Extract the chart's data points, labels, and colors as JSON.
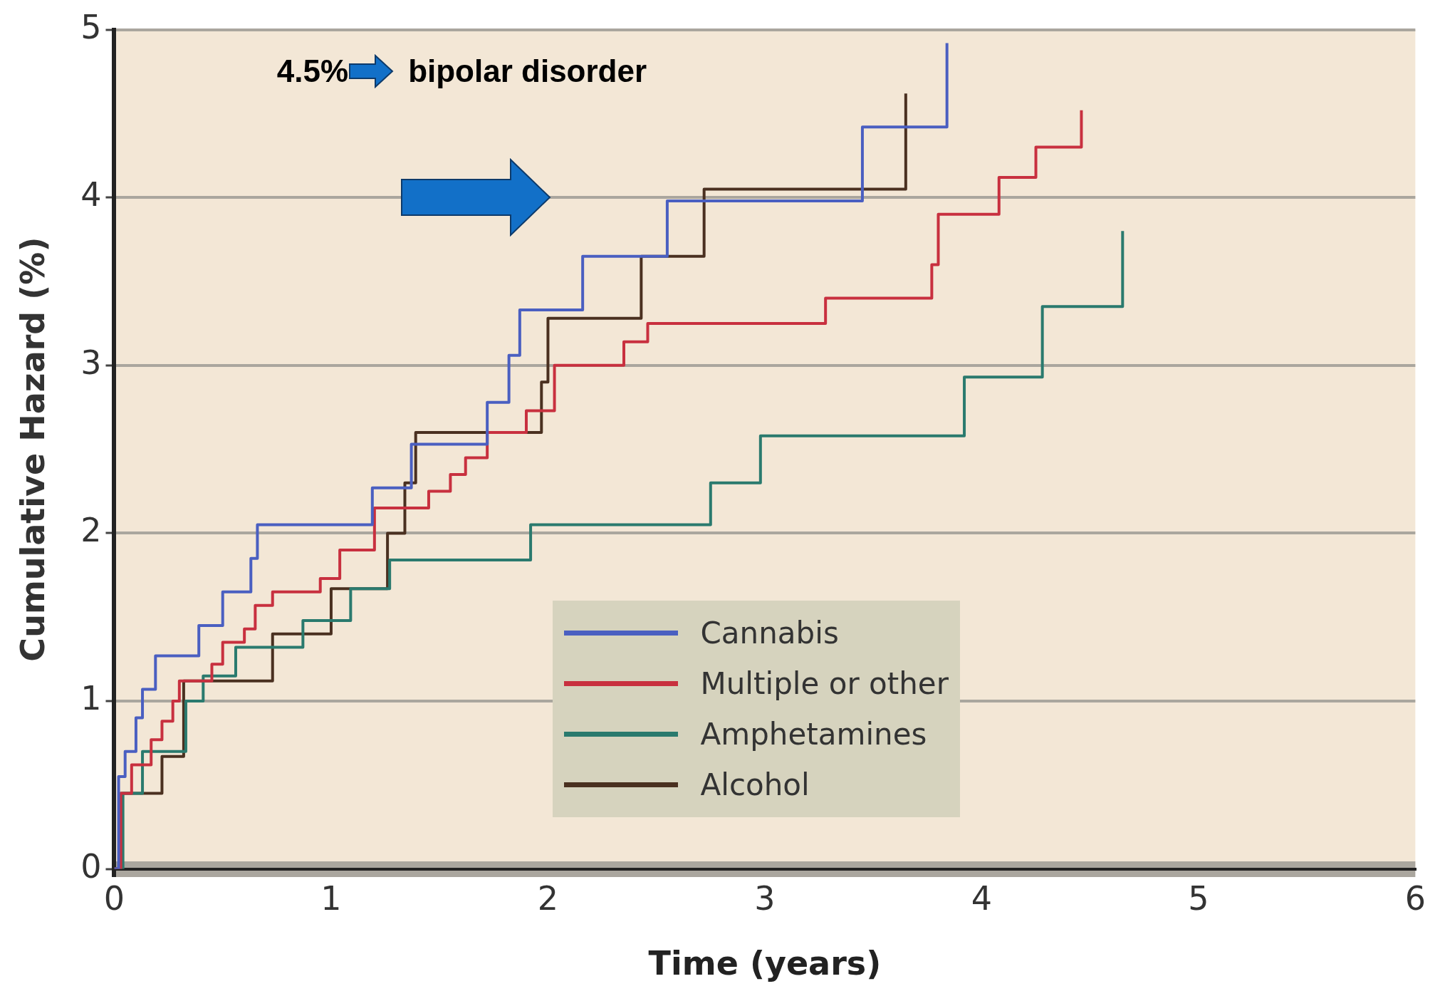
{
  "chart_data": {
    "type": "step",
    "xlabel": "Time (years)",
    "ylabel": "Cumulative Hazard (%)",
    "annotations": [
      "4.5%",
      "bipolar disorder"
    ],
    "xlim": [
      0,
      6
    ],
    "xticks": [
      0,
      1,
      2,
      3,
      4,
      5,
      6
    ],
    "ylim": [
      0,
      5
    ],
    "yticks": [
      0,
      1,
      2,
      3,
      4,
      5
    ],
    "grid": "y",
    "legend": "bottom",
    "series": [
      {
        "name": "Cannabis",
        "color": "#4a5fc1",
        "x": [
          0,
          0.02,
          0.05,
          0.1,
          0.13,
          0.19,
          0.39,
          0.5,
          0.63,
          0.66,
          1.19,
          1.37,
          1.72,
          1.82,
          1.87,
          2.16,
          2.55,
          3.45,
          3.84
        ],
        "values": [
          0,
          0.55,
          0.7,
          0.9,
          1.07,
          1.27,
          1.45,
          1.65,
          1.85,
          2.05,
          2.27,
          2.53,
          2.78,
          3.06,
          3.33,
          3.65,
          3.98,
          4.42,
          4.92
        ]
      },
      {
        "name": "Multiple or other",
        "color": "#c8303f",
        "x": [
          0,
          0.03,
          0.08,
          0.17,
          0.22,
          0.27,
          0.3,
          0.45,
          0.5,
          0.6,
          0.65,
          0.73,
          0.95,
          1.04,
          1.2,
          1.45,
          1.55,
          1.62,
          1.72,
          1.9,
          2.03,
          2.35,
          2.46,
          3.28,
          3.77,
          3.8,
          4.08,
          4.25,
          4.46
        ],
        "values": [
          0,
          0.45,
          0.62,
          0.77,
          0.88,
          1.0,
          1.12,
          1.22,
          1.35,
          1.43,
          1.57,
          1.65,
          1.73,
          1.9,
          2.15,
          2.25,
          2.35,
          2.45,
          2.6,
          2.73,
          3.0,
          3.14,
          3.25,
          3.4,
          3.6,
          3.9,
          4.12,
          4.3,
          4.52
        ]
      },
      {
        "name": "Amphetamines",
        "color": "#2a7a6e",
        "x": [
          0,
          0.04,
          0.13,
          0.33,
          0.41,
          0.56,
          0.87,
          1.09,
          1.27,
          1.92,
          2.75,
          2.98,
          3.92,
          4.28,
          4.65
        ],
        "values": [
          0,
          0.45,
          0.7,
          1.0,
          1.15,
          1.32,
          1.48,
          1.67,
          1.84,
          2.05,
          2.3,
          2.58,
          2.93,
          3.35,
          3.8
        ]
      },
      {
        "name": "Alcohol",
        "color": "#4a3020",
        "x": [
          0,
          0.03,
          0.22,
          0.32,
          0.73,
          1.0,
          1.26,
          1.34,
          1.39,
          1.97,
          2.0,
          2.43,
          2.72,
          3.65
        ],
        "values": [
          0,
          0.45,
          0.67,
          1.12,
          1.4,
          1.67,
          2.0,
          2.3,
          2.6,
          2.9,
          3.28,
          3.65,
          4.05,
          4.62
        ]
      }
    ]
  }
}
